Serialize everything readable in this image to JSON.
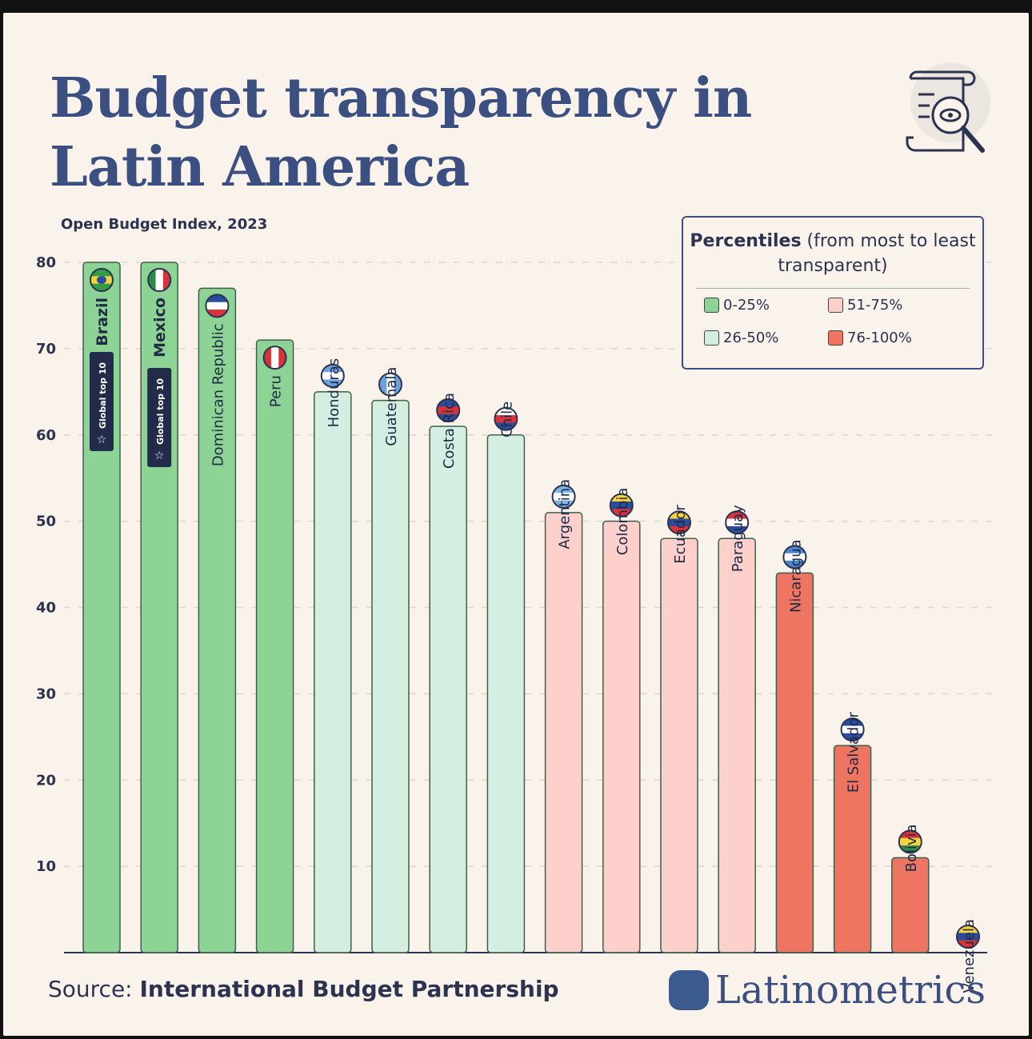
{
  "title_line1": "Budget transparency in",
  "title_line2": "Latin America",
  "subtitle": "Open Budget Index, 2023",
  "source_label": "Source:",
  "source_value": "International Budget Partnership",
  "brand": "Latinometrics",
  "badge_text": "Global top 10",
  "legend": {
    "title_bold": "Percentiles",
    "title_rest": " (from most to least transparent)",
    "items": [
      {
        "label": "0-25%",
        "color": "#8dd395"
      },
      {
        "label": "51-75%",
        "color": "#fdd0cc"
      },
      {
        "label": "26-50%",
        "color": "#d4eee1"
      },
      {
        "label": "76-100%",
        "color": "#ef7563"
      }
    ]
  },
  "chart_data": {
    "type": "bar",
    "title": "Budget transparency in Latin America",
    "subtitle": "Open Budget Index, 2023",
    "ylim": [
      0,
      80
    ],
    "yticks": [
      10,
      20,
      30,
      40,
      50,
      60,
      70,
      80
    ],
    "grid": true,
    "legend_position": "top-right",
    "categories": [
      "Brazil",
      "Mexico",
      "Dominican Republic",
      "Peru",
      "Honduras",
      "Guatemala",
      "Costa Rica",
      "Chile",
      "Argentina",
      "Colombia",
      "Ecuador",
      "Paraguay",
      "Nicaragua",
      "El Salvador",
      "Bolivia",
      "Venezuela"
    ],
    "values": [
      80,
      80,
      77,
      71,
      65,
      64,
      61,
      60,
      51,
      50,
      48,
      48,
      44,
      24,
      11,
      0
    ],
    "percentile_group": [
      "0-25%",
      "0-25%",
      "0-25%",
      "0-25%",
      "26-50%",
      "26-50%",
      "26-50%",
      "26-50%",
      "51-75%",
      "51-75%",
      "51-75%",
      "51-75%",
      "76-100%",
      "76-100%",
      "76-100%",
      "76-100%"
    ],
    "global_top_10": [
      "Brazil",
      "Mexico"
    ],
    "flags": {
      "Brazil": [
        "#2f9e44",
        "#f5d33c",
        "#2f9e44"
      ],
      "Mexico": [
        "#2f8a4a",
        "#ffffff",
        "#d6333a"
      ],
      "Dominican Republic": [
        "#2b4c9a",
        "#ffffff",
        "#d6333a"
      ],
      "Peru": [
        "#d6333a",
        "#ffffff",
        "#d6333a"
      ],
      "Honduras": [
        "#6fa0dc",
        "#ffffff",
        "#6fa0dc"
      ],
      "Guatemala": [
        "#6fa0dc",
        "#ffffff",
        "#6fa0dc"
      ],
      "Costa Rica": [
        "#2b4c9a",
        "#d6333a",
        "#2b4c9a"
      ],
      "Chile": [
        "#ffffff",
        "#d6333a",
        "#2b4c9a"
      ],
      "Argentina": [
        "#7fb5e6",
        "#ffffff",
        "#7fb5e6"
      ],
      "Colombia": [
        "#f5d33c",
        "#2b4c9a",
        "#d6333a"
      ],
      "Ecuador": [
        "#f5d33c",
        "#2b4c9a",
        "#d6333a"
      ],
      "Paraguay": [
        "#d6333a",
        "#ffffff",
        "#2b4c9a"
      ],
      "Nicaragua": [
        "#4a86d0",
        "#ffffff",
        "#4a86d0"
      ],
      "El Salvador": [
        "#2b4c9a",
        "#ffffff",
        "#2b4c9a"
      ],
      "Bolivia": [
        "#d6333a",
        "#f5d33c",
        "#2f8a4a"
      ],
      "Venezuela": [
        "#f5d33c",
        "#2b4c9a",
        "#d6333a"
      ]
    }
  },
  "colors": {
    "title": "#3b4f80",
    "background": "#faf3ec",
    "badge": "#222b4a"
  }
}
